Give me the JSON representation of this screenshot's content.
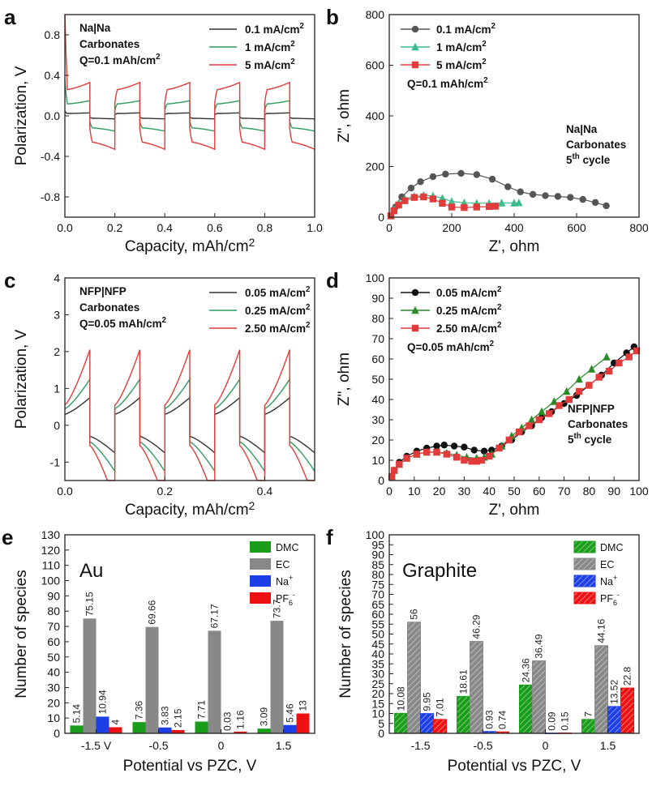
{
  "chart_data": [
    {
      "panel": "a",
      "type": "line",
      "xlabel": "Capacity, mAh/cm2",
      "ylabel": "Polarization, V",
      "xlim": [
        0,
        1.0
      ],
      "ylim": [
        -1.0,
        1.0
      ],
      "xticks": [
        "0.0",
        "0.2",
        "0.4",
        "0.6",
        "0.8",
        "1.0"
      ],
      "yticks": [
        "-0.8",
        "-0.4",
        "0.0",
        "0.4",
        "0.8"
      ],
      "annotation": [
        "Na|Na",
        "Carbonates",
        "Q=0.1 mAh/cm2"
      ],
      "cycle_capacity": 0.1,
      "series": [
        {
          "name": "0.1 mA/cm2",
          "color": "#333333",
          "plateau": 0.03
        },
        {
          "name": "1 mA/cm2",
          "color": "#2e9b5e",
          "plateau": 0.15
        },
        {
          "name": "5 mA/cm2",
          "color": "#e23b3b",
          "plateau": 0.33
        }
      ]
    },
    {
      "panel": "b",
      "type": "scatter",
      "xlabel": "Z', ohm",
      "ylabel": "Z'', ohm",
      "xlim": [
        0,
        800
      ],
      "ylim": [
        0,
        800
      ],
      "xticks": [
        "0",
        "200",
        "400",
        "600",
        "800"
      ],
      "yticks": [
        "0",
        "200",
        "400",
        "600",
        "800"
      ],
      "legend_note": "Q=0.1 mAh/cm2",
      "annotation": [
        "Na|Na",
        "Carbonates",
        "5th cycle"
      ],
      "series": [
        {
          "name": "0.1 mA/cm2",
          "color": "#555555",
          "marker": "circle",
          "x": [
            5,
            20,
            40,
            70,
            100,
            140,
            180,
            230,
            280,
            330,
            380,
            420,
            460,
            500,
            540,
            580,
            620,
            660,
            695
          ],
          "y": [
            5,
            40,
            80,
            115,
            140,
            160,
            170,
            173,
            168,
            150,
            120,
            100,
            90,
            85,
            82,
            78,
            70,
            58,
            45
          ]
        },
        {
          "name": "1 mA/cm2",
          "color": "#3dbb8a",
          "marker": "triangle",
          "x": [
            5,
            15,
            30,
            50,
            80,
            110,
            140,
            170,
            200,
            240,
            280,
            320,
            360,
            400,
            415
          ],
          "y": [
            5,
            30,
            55,
            72,
            82,
            86,
            84,
            75,
            62,
            57,
            55,
            55,
            56,
            56,
            57
          ]
        },
        {
          "name": "5 mA/cm2",
          "color": "#e23b3b",
          "marker": "square",
          "x": [
            5,
            15,
            30,
            50,
            80,
            110,
            140,
            170,
            200,
            240,
            280,
            320,
            340
          ],
          "y": [
            5,
            25,
            48,
            65,
            78,
            80,
            72,
            55,
            40,
            38,
            40,
            42,
            43
          ]
        }
      ]
    },
    {
      "panel": "c",
      "type": "line",
      "xlabel": "Capacity, mAh/cm2",
      "ylabel": "Polarization, V",
      "xlim": [
        0,
        0.5
      ],
      "ylim": [
        -1.5,
        4.0
      ],
      "xticks": [
        "0.0",
        "0.2",
        "0.4"
      ],
      "yticks": [
        "-1",
        "0",
        "1",
        "2",
        "3",
        "4"
      ],
      "annotation": [
        "NFP|NFP",
        "Carbonates",
        "Q=0.05 mAh/cm2"
      ],
      "cycle_capacity": 0.05,
      "series": [
        {
          "name": "0.05 mA/cm2",
          "color": "#333333",
          "peak": 0.75,
          "base": 0.3
        },
        {
          "name": "0.25 mA/cm2",
          "color": "#2e9b5e",
          "peak": 1.25,
          "base": 0.45
        },
        {
          "name": "2.50 mA/cm2",
          "color": "#e23b3b",
          "peak": 2.05,
          "base": 0.55
        }
      ]
    },
    {
      "panel": "d",
      "type": "scatter",
      "xlabel": "Z', ohm",
      "ylabel": "Z'', ohm",
      "xlim": [
        0,
        100
      ],
      "ylim": [
        0,
        100
      ],
      "xticks": [
        "0",
        "10",
        "20",
        "30",
        "40",
        "50",
        "60",
        "70",
        "80",
        "90",
        "100"
      ],
      "yticks": [
        "0",
        "10",
        "20",
        "30",
        "40",
        "50",
        "60",
        "70",
        "80",
        "90",
        "100"
      ],
      "legend_note": "Q=0.05 mAh/cm2",
      "annotation": [
        "NFP|NFP",
        "Carbonates",
        "5th cycle"
      ],
      "series": [
        {
          "name": "0.05 mA/cm2",
          "color": "#111111",
          "marker": "circle",
          "x": [
            1,
            2,
            4,
            7,
            11,
            15,
            19,
            22,
            26,
            30,
            34,
            38,
            41,
            45,
            49,
            53,
            57,
            61,
            65,
            70,
            75,
            80,
            85,
            90,
            95,
            98
          ],
          "y": [
            2,
            5,
            9,
            12,
            14.5,
            16,
            17,
            17.5,
            17,
            16.5,
            15,
            14.5,
            15,
            17,
            20,
            24,
            27,
            31,
            34,
            38,
            42,
            47,
            52,
            58,
            63,
            66
          ]
        },
        {
          "name": "0.25 mA/cm2",
          "color": "#2a8a2a",
          "marker": "triangle",
          "x": [
            1,
            2,
            4,
            7,
            11,
            15,
            19,
            23,
            27,
            31,
            35,
            38,
            41,
            45,
            49,
            53,
            57,
            61,
            66,
            71,
            76,
            81,
            87
          ],
          "y": [
            2,
            5,
            8,
            11,
            13,
            14,
            14,
            13.5,
            12.5,
            11.5,
            11,
            11.5,
            13,
            17,
            22,
            26,
            30,
            34,
            39,
            44,
            50,
            55,
            61
          ]
        },
        {
          "name": "2.50 mA/cm2",
          "color": "#e23b3b",
          "marker": "square",
          "x": [
            1,
            2,
            4,
            7,
            11,
            15,
            19,
            23,
            27,
            30,
            33,
            35,
            37,
            40,
            44,
            48,
            52,
            56,
            60,
            64,
            68,
            72,
            76,
            80,
            84,
            88,
            92,
            96,
            99
          ],
          "y": [
            2,
            5,
            8,
            11,
            13,
            14,
            14,
            13,
            11.5,
            10,
            9.5,
            9.5,
            10,
            12,
            16,
            20,
            24,
            27,
            30,
            33,
            37,
            40,
            44,
            47,
            51,
            54,
            58,
            61,
            64
          ]
        }
      ]
    },
    {
      "panel": "e",
      "type": "bar",
      "title": "Au",
      "xlabel": "Potential vs PZC, V",
      "ylabel": "Number of species",
      "ylim": [
        0,
        130
      ],
      "yticks": [
        "0",
        "10",
        "20",
        "30",
        "40",
        "50",
        "60",
        "70",
        "80",
        "90",
        "100",
        "110",
        "120",
        "130"
      ],
      "categories": [
        "-1.5 V",
        "-0.5",
        "0",
        "1.5"
      ],
      "series": [
        {
          "name": "DMC",
          "color": "#1a9e1a",
          "values": [
            5.14,
            7.36,
            7.71,
            3.09
          ],
          "labels": [
            "5.14",
            "7.36",
            "7.71",
            "3.09"
          ]
        },
        {
          "name": "EC",
          "color": "#888888",
          "values": [
            75.15,
            69.66,
            67.17,
            73.7
          ],
          "labels": [
            "75.15",
            "69.66",
            "67.17",
            "73.7"
          ]
        },
        {
          "name": "Na+",
          "color": "#1e3ee6",
          "values": [
            10.94,
            3.83,
            0.03,
            5.46
          ],
          "labels": [
            "10.94",
            "3.83",
            "0.03",
            "5.46"
          ]
        },
        {
          "name": "PF6-",
          "color": "#ee1111",
          "values": [
            4,
            2.15,
            1.16,
            13
          ],
          "labels": [
            "4",
            "2.15",
            "1.16",
            "13"
          ]
        }
      ]
    },
    {
      "panel": "f",
      "type": "bar",
      "title": "Graphite",
      "xlabel": "Potential vs PZC, V",
      "ylabel": "Number of species",
      "ylim": [
        0,
        100
      ],
      "yticks": [
        "0",
        "5",
        "10",
        "15",
        "20",
        "25",
        "30",
        "35",
        "40",
        "45",
        "50",
        "55",
        "60",
        "65",
        "70",
        "75",
        "80",
        "85",
        "90",
        "95",
        "100"
      ],
      "categories": [
        "-1.5",
        "-0.5",
        "0",
        "1.5"
      ],
      "series": [
        {
          "name": "DMC",
          "color": "#1a9e1a",
          "values": [
            10.08,
            18.61,
            24.36,
            7
          ],
          "labels": [
            "10.08",
            "18.61",
            "24.36",
            "7"
          ]
        },
        {
          "name": "EC",
          "color": "#888888",
          "values": [
            56,
            46.29,
            36.49,
            44.16
          ],
          "labels": [
            "56",
            "46.29",
            "36.49",
            "44.16"
          ]
        },
        {
          "name": "Na+",
          "color": "#1e3ee6",
          "values": [
            9.95,
            0.93,
            0.09,
            13.52
          ],
          "labels": [
            "9.95",
            "0.93",
            "0.09",
            "13.52"
          ]
        },
        {
          "name": "PF6-",
          "color": "#ee1111",
          "values": [
            7.01,
            0.74,
            0.15,
            22.8
          ],
          "labels": [
            "7.01",
            "0.74",
            "0.15",
            "22.8"
          ]
        }
      ]
    }
  ],
  "labels": {
    "a": "a",
    "b": "b",
    "c": "c",
    "d": "d",
    "e": "e",
    "f": "f"
  }
}
